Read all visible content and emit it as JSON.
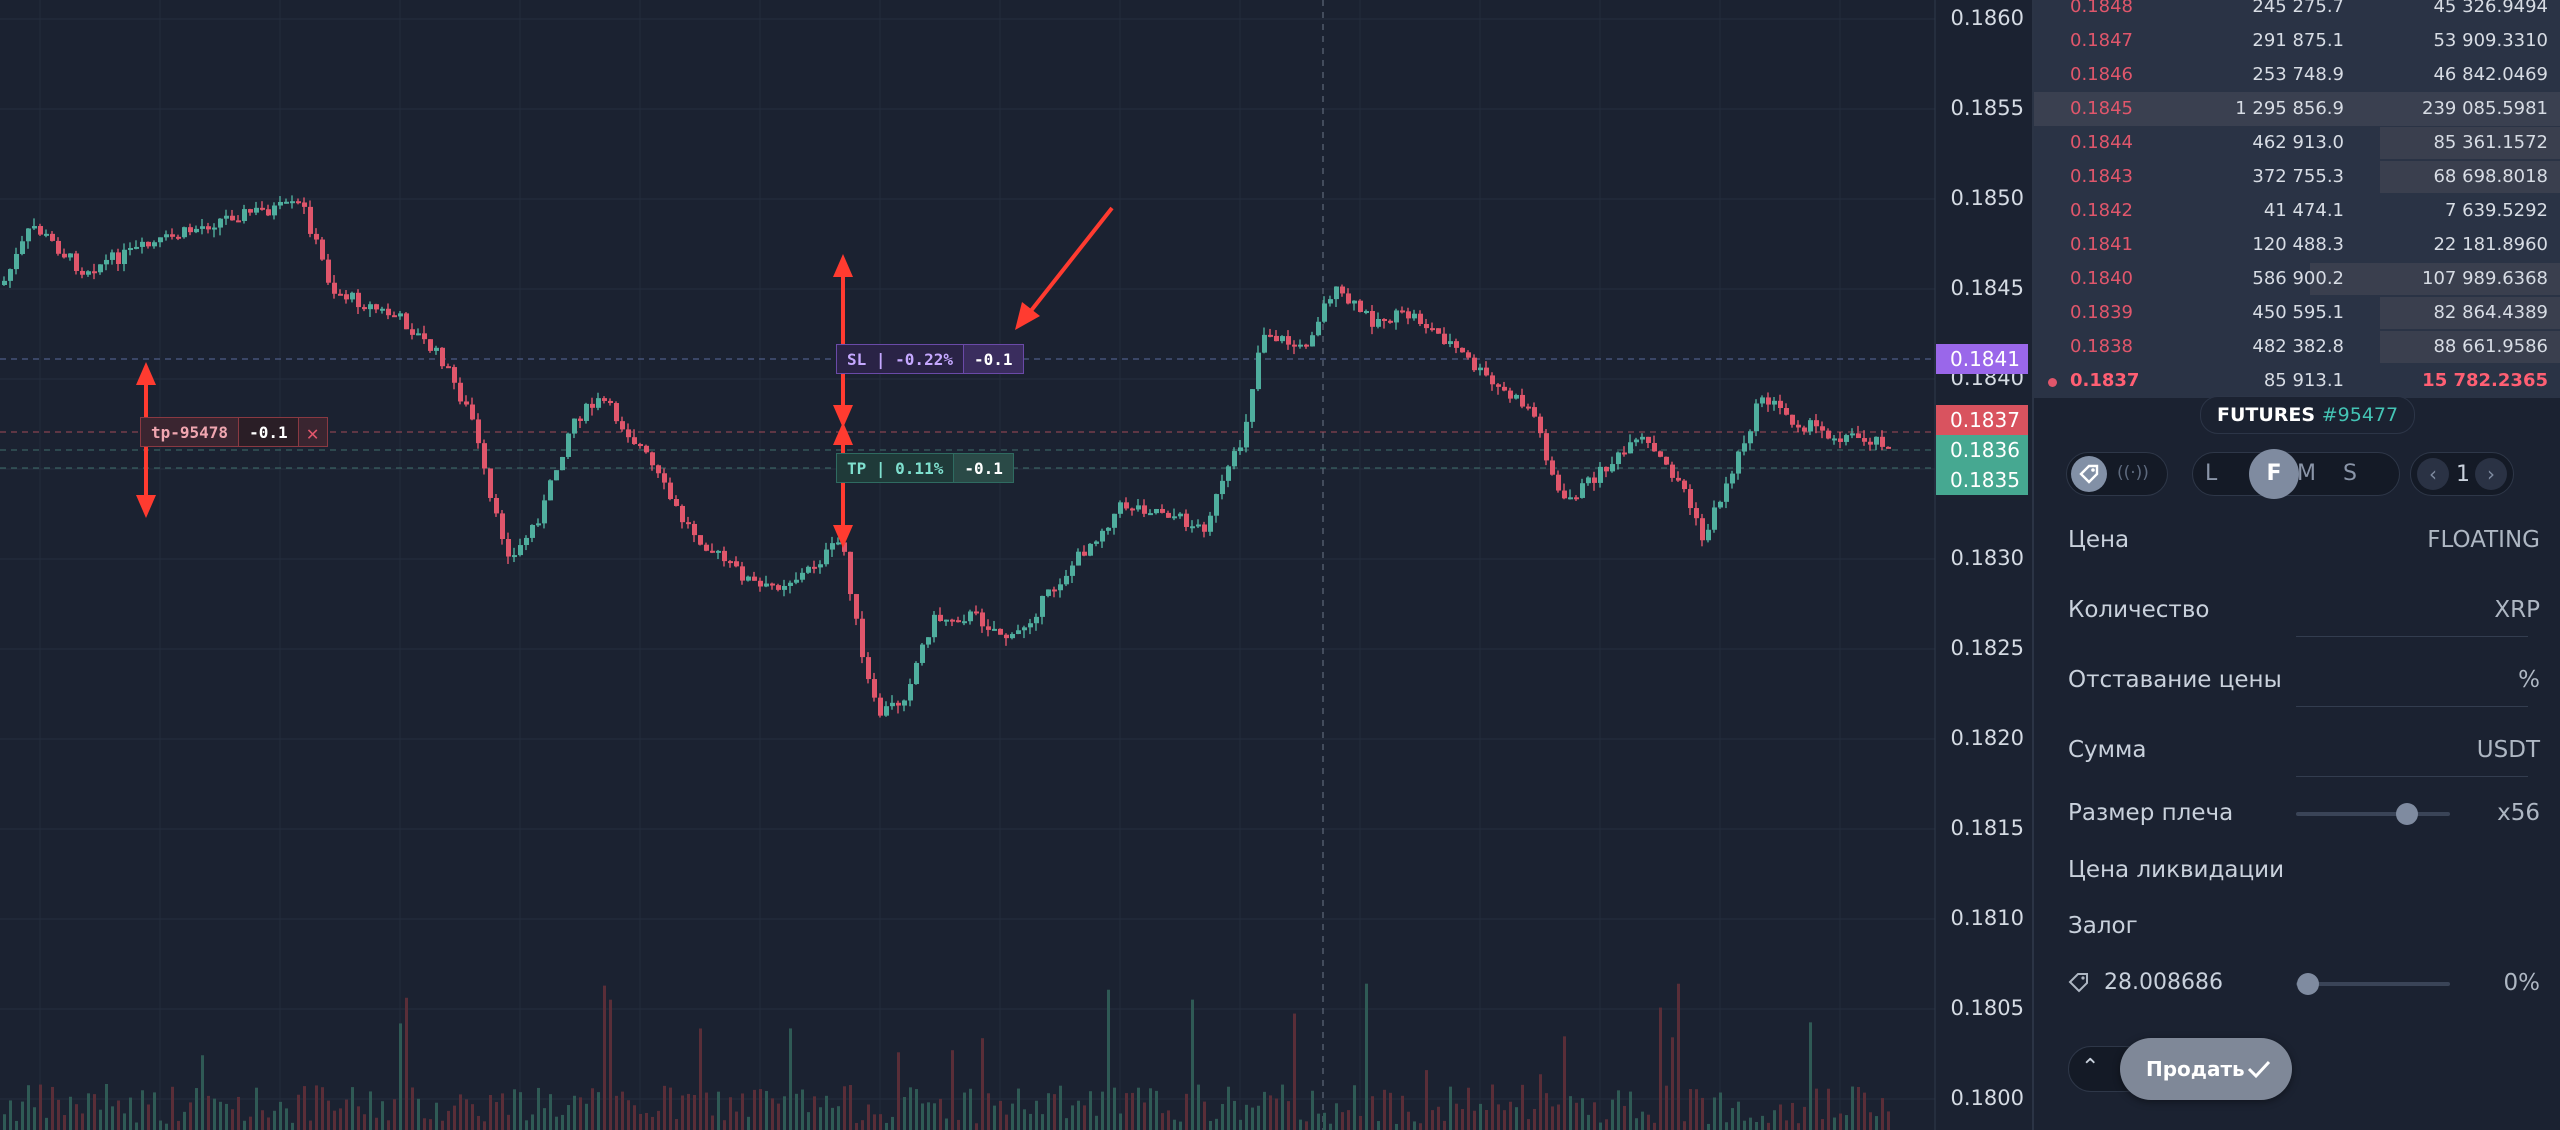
{
  "price_axis": {
    "labels": [
      "0.1860",
      "0.1855",
      "0.1850",
      "0.1845",
      "0.1840",
      "0.1835",
      "0.1830",
      "0.1825",
      "0.1820",
      "0.1815",
      "0.1810",
      "0.1805",
      "0.1800"
    ],
    "tags": {
      "sl_level": "0.1841",
      "last_price": "0.1837",
      "bid": "0.1836",
      "tp_level": "0.1835"
    }
  },
  "chart_orders": {
    "tp_order": {
      "label": "tp-95478",
      "qty": "-0.1"
    },
    "sl": {
      "label": "SL | -0.22%",
      "qty": "-0.1"
    },
    "tp": {
      "label": "TP | 0.11%",
      "qty": "-0.1"
    }
  },
  "orderbook": {
    "rows": [
      {
        "price": "0.1848",
        "qty": "245 275.7",
        "total": "45 326.9494"
      },
      {
        "price": "0.1847",
        "qty": "291 875.1",
        "total": "53 909.3310"
      },
      {
        "price": "0.1846",
        "qty": "253 748.9",
        "total": "46 842.0469"
      },
      {
        "price": "0.1845",
        "qty": "1 295 856.9",
        "total": "239 085.5981"
      },
      {
        "price": "0.1844",
        "qty": "462 913.0",
        "total": "85 361.1572"
      },
      {
        "price": "0.1843",
        "qty": "372 755.3",
        "total": "68 698.8018"
      },
      {
        "price": "0.1842",
        "qty": "41 474.1",
        "total": "7 639.5292"
      },
      {
        "price": "0.1841",
        "qty": "120 488.3",
        "total": "22 181.8960"
      },
      {
        "price": "0.1840",
        "qty": "586 900.2",
        "total": "107 989.6368"
      },
      {
        "price": "0.1839",
        "qty": "450 595.1",
        "total": "82 864.4389"
      },
      {
        "price": "0.1838",
        "qty": "482 382.8",
        "total": "88 661.9586"
      },
      {
        "price": "0.1837",
        "qty": "85 913.1",
        "total": "15 782.2365"
      }
    ]
  },
  "futures": {
    "label": "FUTURES",
    "number": "#95477"
  },
  "mode_buttons": [
    "L",
    "F",
    "M",
    "S"
  ],
  "leverage_step": "1",
  "form": {
    "price_label": "Цена",
    "price_value": "FLOATING",
    "qty_label": "Количество",
    "qty_unit": "XRP",
    "trail_label": "Отставание цены",
    "trail_unit": "%",
    "sum_label": "Сумма",
    "sum_unit": "USDT",
    "leverage_label": "Размер плеча",
    "leverage_value": "x56",
    "leverage_level": 0.72,
    "liq_label": "Цена ликвидации",
    "margin_label": "Залог",
    "balance": "28.008686",
    "balance_pct": "0%",
    "sell_button": "Продать"
  },
  "colors": {
    "bg": "#1b2231",
    "up": "#4fae9e",
    "down": "#e0566b",
    "sl": "#9a67ea",
    "accent": "#44c4b5"
  }
}
